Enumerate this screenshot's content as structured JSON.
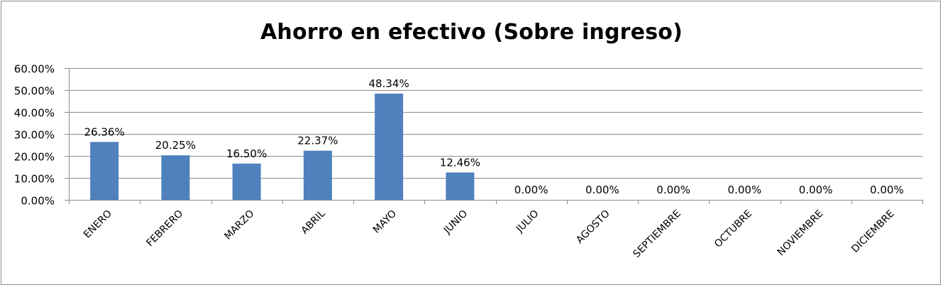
{
  "chart_data": {
    "type": "bar",
    "title": "Ahorro en efectivo (Sobre ingreso)",
    "categories": [
      "ENERO",
      "FEBRERO",
      "MARZO",
      "ABRIL",
      "MAYO",
      "JUNIO",
      "JULIO",
      "AGOSTO",
      "SEPTIEMBRE",
      "OCTUBRE",
      "NOVIEMBRE",
      "DICIEMBRE"
    ],
    "values": [
      26.36,
      20.25,
      16.5,
      22.37,
      48.34,
      12.46,
      0,
      0,
      0,
      0,
      0,
      0
    ],
    "data_labels": [
      "26.36%",
      "20.25%",
      "16.50%",
      "22.37%",
      "48.34%",
      "12.46%",
      "0.00%",
      "0.00%",
      "0.00%",
      "0.00%",
      "0.00%",
      "0.00%"
    ],
    "y_ticks": [
      "0.00%",
      "10.00%",
      "20.00%",
      "30.00%",
      "40.00%",
      "50.00%",
      "60.00%"
    ],
    "ylim": [
      0,
      60
    ],
    "xlabel": "",
    "ylabel": "",
    "grid": true,
    "legend": "none",
    "bar_color": "#4f81bd"
  }
}
